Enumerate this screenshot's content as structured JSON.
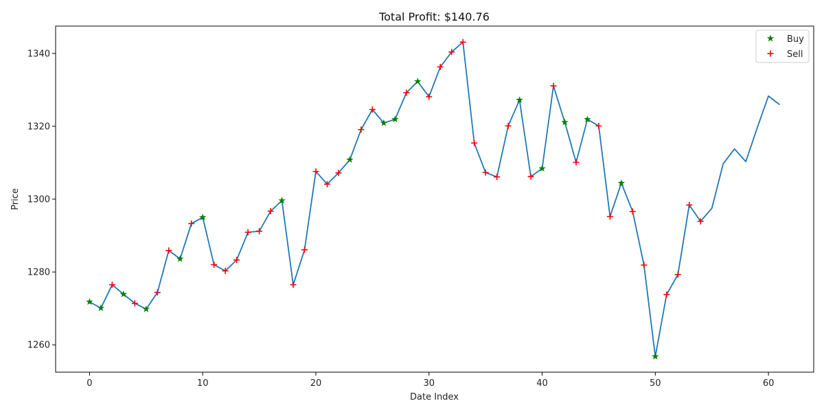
{
  "chart_data": {
    "type": "line",
    "title": "Total Profit: $140.76",
    "xlabel": "Date Index",
    "ylabel": "Price",
    "xlim": [
      -3,
      64
    ],
    "ylim": [
      1252.5,
      1347.5
    ],
    "xticks": [
      "0",
      "10",
      "20",
      "30",
      "40",
      "50",
      "60"
    ],
    "yticks": [
      "1260",
      "1280",
      "1300",
      "1320",
      "1340"
    ],
    "legend_position": "top-right",
    "grid": false,
    "line_color": "#1f77b4",
    "buy_color": "#008000",
    "sell_color": "#ff0000",
    "series": [
      {
        "x": [
          0,
          1,
          2,
          3,
          4,
          5,
          6,
          7,
          8,
          9,
          10,
          11,
          12,
          13,
          14,
          15,
          16,
          17,
          18,
          19,
          20,
          21,
          22,
          23,
          24,
          25,
          26,
          27,
          28,
          29,
          30,
          31,
          32,
          33,
          34,
          35,
          36,
          37,
          38,
          39,
          40,
          41,
          42,
          43,
          44,
          45,
          46,
          47,
          48,
          49,
          50,
          51,
          52,
          53,
          54,
          55,
          56,
          57,
          58,
          59,
          60,
          61
        ],
        "y": [
          1271.8,
          1270.1,
          1276.5,
          1273.9,
          1271.4,
          1269.8,
          1274.4,
          1285.9,
          1283.6,
          1293.3,
          1295.0,
          1282.0,
          1280.3,
          1283.3,
          1290.9,
          1291.2,
          1296.7,
          1299.6,
          1276.5,
          1286.1,
          1307.6,
          1304.1,
          1307.2,
          1310.8,
          1319.1,
          1324.6,
          1320.9,
          1321.9,
          1329.2,
          1332.3,
          1328.1,
          1336.3,
          1340.4,
          1343.1,
          1315.4,
          1307.3,
          1306.1,
          1320.1,
          1327.2,
          1306.2,
          1308.4,
          1331.1,
          1321.1,
          1310.1,
          1321.9,
          1320.1,
          1295.2,
          1304.4,
          1296.6,
          1281.9,
          1256.8,
          1273.8,
          1279.3,
          1298.4,
          1293.9,
          1297.5,
          1309.7,
          1313.8,
          1310.3,
          1319.5,
          1328.3,
          1325.9
        ]
      },
      {
        "name": "Buy",
        "x": [
          0,
          1,
          3,
          5,
          8,
          10,
          17,
          23,
          26,
          27,
          29,
          38,
          40,
          42,
          44,
          47,
          50
        ],
        "y": [
          1271.8,
          1270.1,
          1273.9,
          1269.8,
          1283.6,
          1295.0,
          1299.6,
          1310.8,
          1320.9,
          1321.9,
          1332.3,
          1327.2,
          1308.4,
          1321.1,
          1321.9,
          1304.4,
          1256.8
        ]
      },
      {
        "name": "Sell",
        "x": [
          2,
          4,
          6,
          7,
          9,
          11,
          12,
          13,
          14,
          15,
          16,
          18,
          19,
          20,
          21,
          22,
          24,
          25,
          28,
          30,
          31,
          32,
          33,
          34,
          35,
          36,
          37,
          39,
          41,
          43,
          45,
          46,
          48,
          49,
          51,
          52,
          53,
          54
        ],
        "y": [
          1276.5,
          1271.4,
          1274.4,
          1285.9,
          1293.3,
          1282.0,
          1280.3,
          1283.3,
          1290.9,
          1291.2,
          1296.7,
          1276.5,
          1286.1,
          1307.6,
          1304.1,
          1307.2,
          1319.1,
          1324.6,
          1329.2,
          1328.1,
          1336.3,
          1340.4,
          1343.1,
          1315.4,
          1307.3,
          1306.1,
          1320.1,
          1306.2,
          1331.1,
          1310.1,
          1320.1,
          1295.2,
          1296.6,
          1281.9,
          1273.8,
          1279.3,
          1298.4,
          1293.9
        ]
      }
    ]
  }
}
